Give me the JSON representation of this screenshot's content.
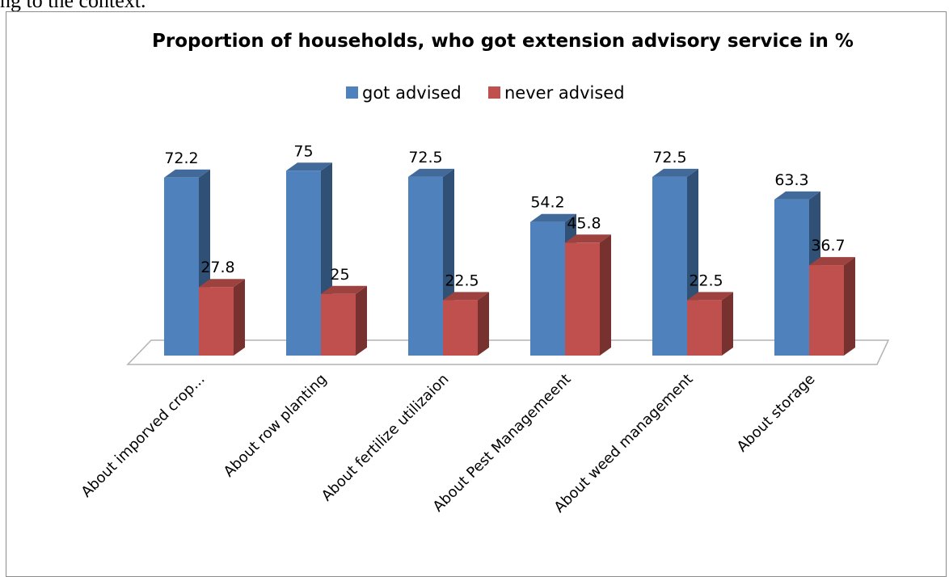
{
  "context_text": "ng to the context.",
  "chart_data": {
    "type": "bar",
    "title": "Proportion of households, who got extension advisory service in %",
    "categories": [
      "About imporved crop...",
      "About row planting",
      "About  fertilize utilizaion",
      "About Pest Managemeent",
      "About weed management",
      "About storage"
    ],
    "series": [
      {
        "name": "got advised",
        "values": [
          72.2,
          75,
          72.5,
          54.2,
          72.5,
          63.3
        ],
        "color": "#4f81bd"
      },
      {
        "name": "never advised",
        "values": [
          27.8,
          25,
          22.5,
          45.8,
          22.5,
          36.7
        ],
        "color": "#c0504d"
      }
    ],
    "ylim": [
      0,
      80
    ],
    "grid": false,
    "legend": "top",
    "style": "3d-clustered-column"
  }
}
